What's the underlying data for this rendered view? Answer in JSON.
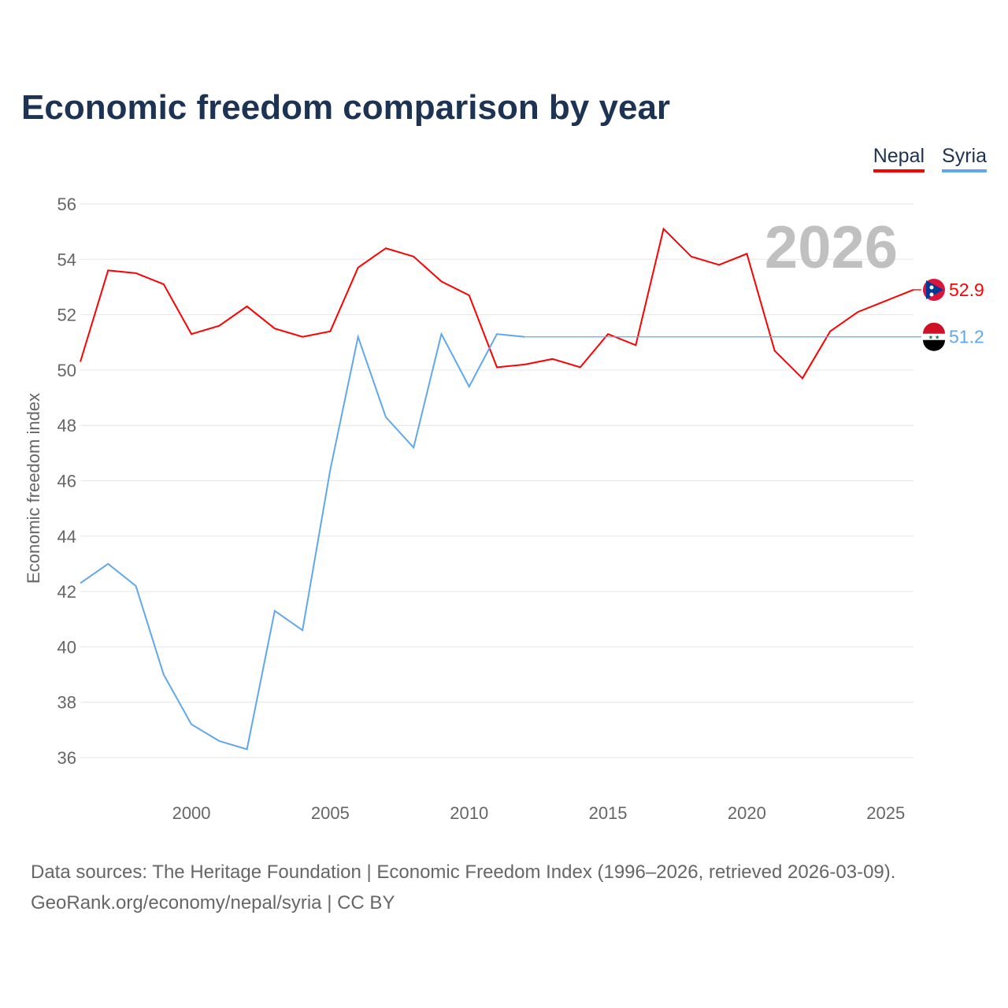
{
  "title": "Economic freedom comparison by year",
  "legend": [
    {
      "label": "Nepal",
      "color": "#ff0000"
    },
    {
      "label": "Syria",
      "color": "#5fa8eb"
    }
  ],
  "source_line1": "Data sources: The Heritage Foundation | Economic Freedom Index (1996–2026, retrieved 2026-03-09).",
  "source_line2": "GeoRank.org/economy/nepal/syria | CC BY",
  "chart_data": {
    "type": "line",
    "title": "Economic freedom comparison by year",
    "xlabel": "",
    "ylabel": "Economic freedom index",
    "year_watermark": "2026",
    "xlim": [
      1996,
      2026
    ],
    "ylim": [
      35,
      56.5
    ],
    "yticks": [
      36,
      38,
      40,
      42,
      44,
      46,
      48,
      50,
      52,
      54,
      56
    ],
    "xticks": [
      2000,
      2005,
      2010,
      2015,
      2020,
      2025
    ],
    "grid": true,
    "legend_position": "top-right",
    "x": [
      1996,
      1997,
      1998,
      1999,
      2000,
      2001,
      2002,
      2003,
      2004,
      2005,
      2006,
      2007,
      2008,
      2009,
      2010,
      2011,
      2012,
      2013,
      2014,
      2015,
      2016,
      2017,
      2018,
      2019,
      2020,
      2021,
      2022,
      2023,
      2024,
      2025,
      2026
    ],
    "series": [
      {
        "name": "Nepal",
        "color": "#ff0000",
        "end_label": "52.9",
        "values": [
          50.3,
          53.6,
          53.5,
          53.1,
          51.3,
          51.6,
          52.3,
          51.5,
          51.2,
          51.4,
          53.7,
          54.4,
          54.1,
          53.2,
          52.7,
          50.1,
          50.2,
          50.4,
          50.1,
          51.3,
          50.9,
          55.1,
          54.1,
          53.8,
          54.2,
          50.7,
          49.7,
          51.4,
          52.1,
          52.5,
          52.9
        ]
      },
      {
        "name": "Syria",
        "color": "#5fa8eb",
        "end_label": "51.2",
        "values": [
          42.3,
          43.0,
          42.2,
          39.0,
          37.2,
          36.6,
          36.3,
          41.3,
          40.6,
          46.4,
          51.2,
          48.3,
          47.2,
          51.3,
          49.4,
          51.3,
          51.2,
          null,
          null,
          null,
          null,
          null,
          null,
          null,
          null,
          null,
          null,
          null,
          null,
          null,
          51.2
        ]
      }
    ]
  }
}
